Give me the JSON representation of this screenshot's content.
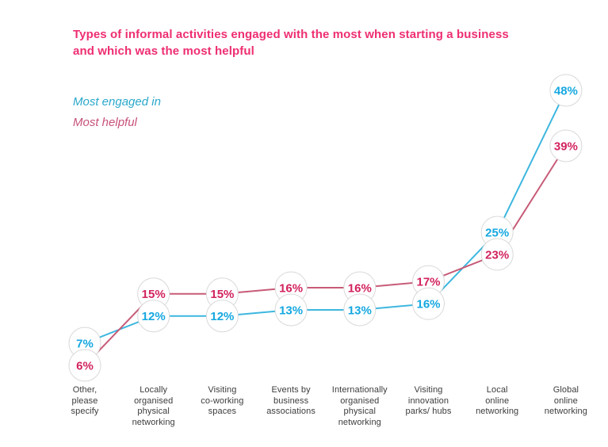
{
  "title": {
    "line1": "Types of informal activities engaged with the most when starting a business",
    "line2": "and which was the most helpful",
    "color": "#ee2e72"
  },
  "legend": {
    "items": [
      {
        "label": "Most engaged in",
        "color": "#2aa8cb"
      },
      {
        "label": "Most helpful",
        "color": "#c8527a"
      }
    ],
    "position": "top-left"
  },
  "chart_data": {
    "type": "line",
    "title": "Types of informal activities engaged with the most when starting a business and which was the most helpful",
    "categories": [
      "Other, please specify",
      "Locally organised physical networking",
      "Visiting co-working spaces",
      "Events by business associations",
      "Internationally organised physical networking",
      "Visiting innovation parks/ hubs",
      "Local online networking",
      "Global online networking"
    ],
    "category_label_lines": [
      [
        "Other,",
        "please",
        "specify"
      ],
      [
        "Locally",
        "organised",
        "physical",
        "networking"
      ],
      [
        "Visiting",
        "co-working",
        "spaces"
      ],
      [
        "Events by",
        "business",
        "associations"
      ],
      [
        "Internationally",
        "organised",
        "physical",
        "networking"
      ],
      [
        "Visiting",
        "innovation",
        "parks/ hubs"
      ],
      [
        "Local",
        "online",
        "networking"
      ],
      [
        "Global",
        "online",
        "networking"
      ]
    ],
    "series": [
      {
        "name": "Most engaged in",
        "values": [
          7,
          12,
          12,
          13,
          13,
          16,
          25,
          48
        ],
        "line_color": "#3db7df",
        "text_color": "#16a8e0"
      },
      {
        "name": "Most helpful",
        "values": [
          6,
          15,
          15,
          16,
          16,
          17,
          23,
          39
        ],
        "line_color": "#c75b77",
        "text_color": "#d2235f"
      }
    ],
    "value_format": "percent",
    "marker": "white-circle-badge",
    "circle_fill": "#ffffff",
    "circle_border": "#d9d9d9",
    "label_color": "#3c3c3c",
    "ylim": [
      0,
      50
    ],
    "grid": false,
    "axes_shown": false
  }
}
